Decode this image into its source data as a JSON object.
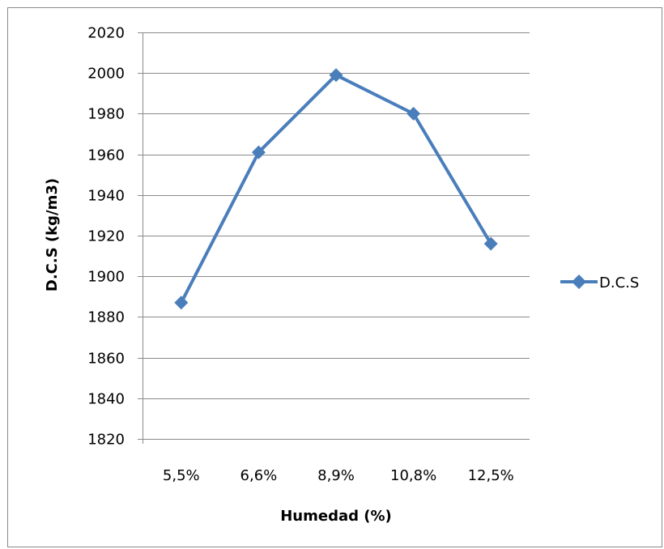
{
  "chart_data": {
    "type": "line",
    "title": "",
    "xlabel": "Humedad (%)",
    "ylabel": "D.C.S (kg/m3)",
    "categories": [
      "5,5%",
      "6,6%",
      "8,9%",
      "10,8%",
      "12,5%"
    ],
    "ylim": [
      1820,
      2020
    ],
    "yticks": [
      1820,
      1840,
      1860,
      1880,
      1900,
      1920,
      1940,
      1960,
      1980,
      2000,
      2020
    ],
    "grid": true,
    "legend_position": "right",
    "series": [
      {
        "name": "D.C.S",
        "values": [
          1887,
          1961,
          1999,
          1980,
          1916
        ],
        "color": "#4A7EBB",
        "marker": "diamond"
      }
    ]
  }
}
